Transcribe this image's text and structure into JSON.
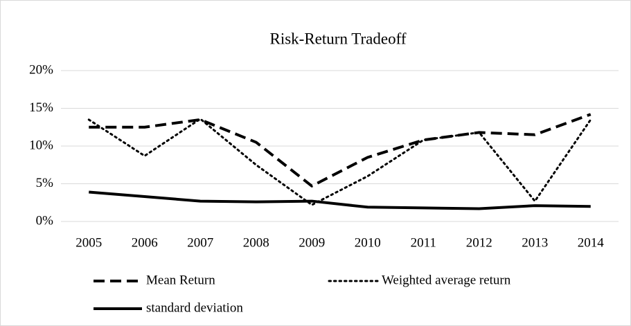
{
  "chart_data": {
    "type": "line",
    "title": "Risk-Return Tradeoff",
    "categories": [
      "2005",
      "2006",
      "2007",
      "2008",
      "2009",
      "2010",
      "2011",
      "2012",
      "2013",
      "2014"
    ],
    "series": [
      {
        "name": "Mean Return",
        "color": "#000000",
        "dash": "dashed",
        "values": [
          12.5,
          12.5,
          13.5,
          10.5,
          4.7,
          8.5,
          10.8,
          11.8,
          11.5,
          14.2
        ]
      },
      {
        "name": "Weighted average return",
        "color": "#000000",
        "dash": "dotted",
        "values": [
          13.5,
          8.7,
          13.6,
          7.5,
          2.2,
          6.0,
          10.8,
          11.8,
          2.7,
          13.5
        ]
      },
      {
        "name": "standard deviation",
        "color": "#000000",
        "dash": "solid",
        "values": [
          3.9,
          3.3,
          2.7,
          2.6,
          2.7,
          1.9,
          1.8,
          1.7,
          2.1,
          2.0
        ]
      }
    ],
    "ylim": [
      0,
      20
    ],
    "yticks": [
      {
        "value": 0,
        "label": "0%"
      },
      {
        "value": 5,
        "label": "5%"
      },
      {
        "value": 10,
        "label": "10%"
      },
      {
        "value": 15,
        "label": "15%"
      },
      {
        "value": 20,
        "label": "20%"
      }
    ],
    "grid": true,
    "legend": "bottom"
  }
}
